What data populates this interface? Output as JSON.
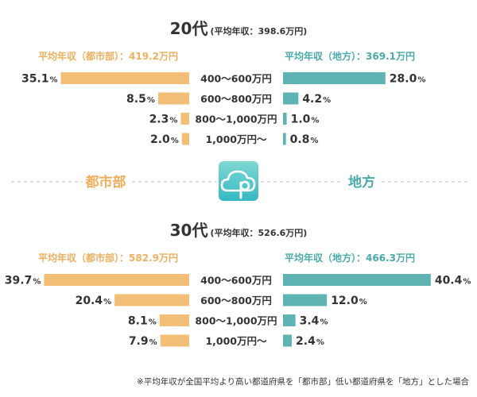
{
  "colors": {
    "urban": "#f3bf77",
    "rural": "#5fb3b3",
    "urban_text": "#eeaf5e",
    "rural_text": "#4aa9a9",
    "logo_gradient_top": "#7fd9d3",
    "logo_gradient_bottom": "#36b8c4",
    "divider": "#bbbbbb"
  },
  "icons": {
    "center_logo": "cloud-p-logo-icon"
  },
  "center": {
    "left_label": "都市部",
    "right_label": "地方"
  },
  "footnote": "※平均年収が全国平均より高い都道府県を「都市部」低い都道府県を「地方」とした場合",
  "chart_data": [
    {
      "type": "bar",
      "title": "20代",
      "subtitle": "(平均年収：398.6万円)",
      "urban_avg_label": "平均年収（都市部）：419.2万円",
      "rural_avg_label": "平均年収（地方）：369.1万円",
      "categories": [
        "400〜600万円",
        "600〜800万円",
        "800〜1,000万円",
        "1,000万円〜"
      ],
      "unit": "%",
      "series": [
        {
          "name": "都市部",
          "values": [
            35.1,
            8.5,
            2.3,
            2.0
          ]
        },
        {
          "name": "地方",
          "values": [
            28.0,
            4.2,
            1.0,
            0.8
          ]
        }
      ]
    },
    {
      "type": "bar",
      "title": "30代",
      "subtitle": "(平均年収：526.6万円)",
      "urban_avg_label": "平均年収（都市部）：582.9万円",
      "rural_avg_label": "平均年収（地方）：466.3万円",
      "categories": [
        "400〜600万円",
        "600〜800万円",
        "800〜1,000万円",
        "1,000万円〜"
      ],
      "unit": "%",
      "series": [
        {
          "name": "都市部",
          "values": [
            39.7,
            20.4,
            8.1,
            7.9
          ]
        },
        {
          "name": "地方",
          "values": [
            40.4,
            12.0,
            3.4,
            2.4
          ]
        }
      ]
    }
  ]
}
